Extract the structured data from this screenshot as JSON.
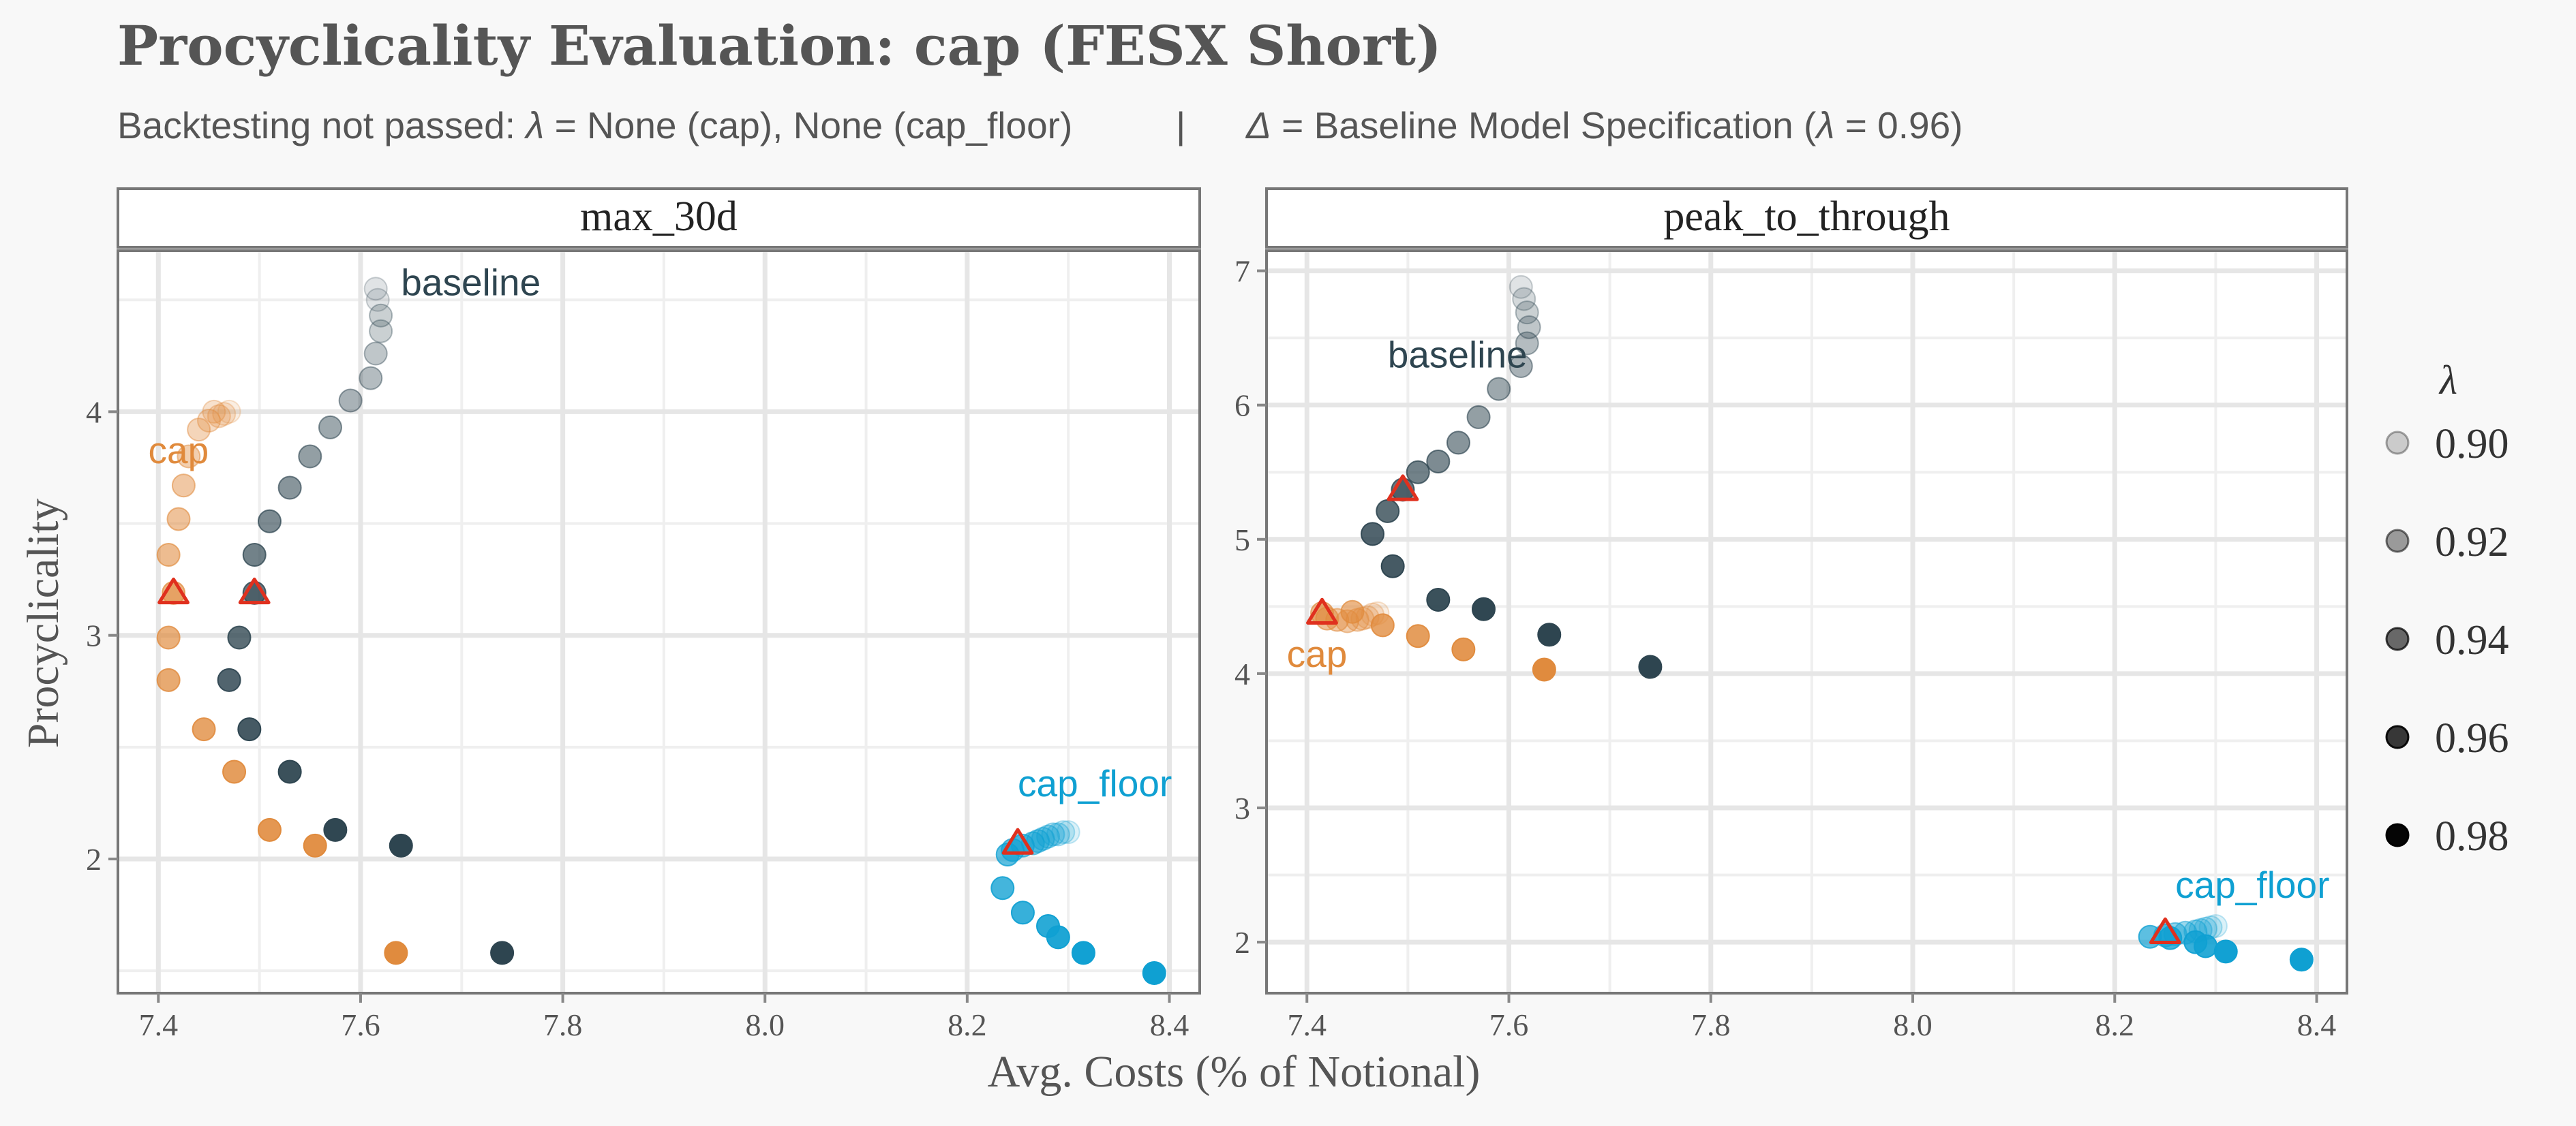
{
  "chart_data": {
    "type": "scatter",
    "title": "Procyclicality Evaluation: cap (FESX Short)",
    "subtitle": {
      "prefix": "Backtesting not passed: ",
      "lambda_sym": "λ",
      "mid": " = None (cap), None (cap_floor)",
      "separator": "|",
      "delta_sym": "Δ",
      "rest_a": " = Baseline Model Specification (",
      "rest_b": " = 0.96)"
    },
    "xlabel": "Avg. Costs (% of Notional)",
    "ylabel": "Procyclicality",
    "xlim": [
      7.36,
      8.43
    ],
    "x_ticks": [
      7.4,
      7.6,
      7.8,
      8.0,
      8.2,
      8.4
    ],
    "x_tick_labels": [
      "7.4",
      "7.6",
      "7.8",
      "8.0",
      "8.2",
      "8.4"
    ],
    "legend": {
      "title": "λ",
      "position": "right",
      "entries": [
        {
          "label": "0.90",
          "alpha": 0.18
        },
        {
          "label": "0.92",
          "alpha": 0.38
        },
        {
          "label": "0.94",
          "alpha": 0.58
        },
        {
          "label": "0.96",
          "alpha": 0.78
        },
        {
          "label": "0.98",
          "alpha": 0.98
        }
      ]
    },
    "series_colors": {
      "baseline": "#2e4550",
      "cap": "#e08a3c",
      "cap_floor": "#0fa0d2"
    },
    "marker_color": "#e0301e",
    "panels": [
      {
        "name": "max_30d",
        "ylim": [
          1.4,
          4.72
        ],
        "y_ticks": [
          2,
          3,
          4
        ],
        "y_tick_labels": [
          "2",
          "3",
          "4"
        ],
        "labels": [
          {
            "series": "baseline",
            "text": "baseline",
            "x": 7.64,
            "y": 4.52,
            "anchor": "start"
          },
          {
            "series": "cap",
            "text": "cap",
            "x": 7.39,
            "y": 3.77,
            "anchor": "start"
          },
          {
            "series": "cap_floor",
            "text": "cap_floor",
            "x": 8.25,
            "y": 2.28,
            "anchor": "start"
          }
        ],
        "markers": [
          {
            "series": "cap",
            "x": 7.415,
            "y": 3.19
          },
          {
            "series": "baseline",
            "x": 7.495,
            "y": 3.19
          },
          {
            "series": "cap_floor",
            "x": 8.25,
            "y": 2.07
          }
        ],
        "series": [
          {
            "name": "baseline",
            "points": [
              [
                7.615,
                4.55,
                0.9
              ],
              [
                7.617,
                4.5,
                0.9
              ],
              [
                7.62,
                4.43,
                0.91
              ],
              [
                7.62,
                4.36,
                0.91
              ],
              [
                7.615,
                4.26,
                0.915
              ],
              [
                7.61,
                4.15,
                0.92
              ],
              [
                7.59,
                4.05,
                0.925
              ],
              [
                7.57,
                3.93,
                0.93
              ],
              [
                7.55,
                3.8,
                0.935
              ],
              [
                7.53,
                3.66,
                0.94
              ],
              [
                7.51,
                3.51,
                0.945
              ],
              [
                7.495,
                3.36,
                0.95
              ],
              [
                7.495,
                3.19,
                0.955
              ],
              [
                7.48,
                2.99,
                0.96
              ],
              [
                7.47,
                2.8,
                0.965
              ],
              [
                7.49,
                2.58,
                0.97
              ],
              [
                7.53,
                2.39,
                0.975
              ],
              [
                7.575,
                2.13,
                0.98
              ],
              [
                7.64,
                2.06,
                0.985
              ],
              [
                7.74,
                1.58,
                0.99
              ]
            ]
          },
          {
            "name": "cap",
            "points": [
              [
                7.47,
                4.0,
                0.9
              ],
              [
                7.465,
                3.99,
                0.905
              ],
              [
                7.46,
                3.98,
                0.91
              ],
              [
                7.455,
                4.0,
                0.91
              ],
              [
                7.45,
                3.96,
                0.915
              ],
              [
                7.44,
                3.92,
                0.92
              ],
              [
                7.43,
                3.8,
                0.925
              ],
              [
                7.425,
                3.67,
                0.93
              ],
              [
                7.42,
                3.52,
                0.935
              ],
              [
                7.41,
                3.36,
                0.94
              ],
              [
                7.415,
                3.19,
                0.945
              ],
              [
                7.41,
                2.99,
                0.95
              ],
              [
                7.41,
                2.8,
                0.955
              ],
              [
                7.445,
                2.58,
                0.96
              ],
              [
                7.475,
                2.39,
                0.965
              ],
              [
                7.51,
                2.13,
                0.97
              ],
              [
                7.555,
                2.06,
                0.975
              ],
              [
                7.635,
                1.58,
                0.98
              ]
            ]
          },
          {
            "name": "cap_floor",
            "points": [
              [
                8.3,
                2.12,
                0.9
              ],
              [
                8.295,
                2.12,
                0.905
              ],
              [
                8.29,
                2.11,
                0.91
              ],
              [
                8.285,
                2.11,
                0.915
              ],
              [
                8.28,
                2.1,
                0.92
              ],
              [
                8.275,
                2.09,
                0.925
              ],
              [
                8.27,
                2.08,
                0.93
              ],
              [
                8.265,
                2.07,
                0.935
              ],
              [
                8.255,
                2.06,
                0.94
              ],
              [
                8.245,
                2.04,
                0.945
              ],
              [
                8.24,
                2.02,
                0.95
              ],
              [
                8.235,
                1.87,
                0.96
              ],
              [
                8.255,
                1.76,
                0.965
              ],
              [
                8.28,
                1.7,
                0.97
              ],
              [
                8.29,
                1.65,
                0.975
              ],
              [
                8.315,
                1.58,
                0.98
              ],
              [
                8.385,
                1.49,
                0.99
              ]
            ]
          }
        ]
      },
      {
        "name": "peak_to_through",
        "ylim": [
          1.62,
          7.15
        ],
        "y_ticks": [
          2,
          3,
          4,
          5,
          6,
          7
        ],
        "y_tick_labels": [
          "2",
          "3",
          "4",
          "5",
          "6",
          "7"
        ],
        "labels": [
          {
            "series": "baseline",
            "text": "baseline",
            "x": 7.48,
            "y": 6.28,
            "anchor": "start"
          },
          {
            "series": "cap",
            "text": "cap",
            "x": 7.38,
            "y": 4.05,
            "anchor": "start"
          },
          {
            "series": "cap_floor",
            "text": "cap_floor",
            "x": 8.26,
            "y": 2.33,
            "anchor": "start"
          }
        ],
        "markers": [
          {
            "series": "cap",
            "x": 7.415,
            "y": 4.45
          },
          {
            "series": "baseline",
            "x": 7.495,
            "y": 5.37
          },
          {
            "series": "cap_floor",
            "x": 8.25,
            "y": 2.07
          }
        ],
        "series": [
          {
            "name": "baseline",
            "points": [
              [
                7.612,
                6.88,
                0.9
              ],
              [
                7.615,
                6.79,
                0.905
              ],
              [
                7.618,
                6.69,
                0.91
              ],
              [
                7.62,
                6.58,
                0.915
              ],
              [
                7.618,
                6.46,
                0.92
              ],
              [
                7.612,
                6.29,
                0.925
              ],
              [
                7.59,
                6.12,
                0.93
              ],
              [
                7.57,
                5.91,
                0.935
              ],
              [
                7.55,
                5.72,
                0.94
              ],
              [
                7.53,
                5.58,
                0.945
              ],
              [
                7.51,
                5.5,
                0.95
              ],
              [
                7.495,
                5.37,
                0.955
              ],
              [
                7.48,
                5.21,
                0.96
              ],
              [
                7.465,
                5.04,
                0.965
              ],
              [
                7.485,
                4.8,
                0.97
              ],
              [
                7.53,
                4.55,
                0.975
              ],
              [
                7.575,
                4.48,
                0.98
              ],
              [
                7.64,
                4.29,
                0.985
              ],
              [
                7.74,
                4.05,
                0.99
              ]
            ]
          },
          {
            "name": "cap",
            "points": [
              [
                7.47,
                4.45,
                0.9
              ],
              [
                7.465,
                4.44,
                0.905
              ],
              [
                7.46,
                4.42,
                0.91
              ],
              [
                7.455,
                4.41,
                0.915
              ],
              [
                7.45,
                4.4,
                0.92
              ],
              [
                7.44,
                4.39,
                0.925
              ],
              [
                7.43,
                4.4,
                0.93
              ],
              [
                7.42,
                4.41,
                0.935
              ],
              [
                7.415,
                4.45,
                0.94
              ],
              [
                7.445,
                4.46,
                0.945
              ],
              [
                7.475,
                4.36,
                0.96
              ],
              [
                7.51,
                4.28,
                0.965
              ],
              [
                7.555,
                4.18,
                0.97
              ],
              [
                7.635,
                4.03,
                0.98
              ]
            ]
          },
          {
            "name": "cap_floor",
            "points": [
              [
                8.3,
                2.12,
                0.9
              ],
              [
                8.295,
                2.11,
                0.905
              ],
              [
                8.29,
                2.1,
                0.91
              ],
              [
                8.285,
                2.09,
                0.915
              ],
              [
                8.28,
                2.08,
                0.92
              ],
              [
                8.27,
                2.07,
                0.925
              ],
              [
                8.26,
                2.06,
                0.93
              ],
              [
                8.25,
                2.05,
                0.94
              ],
              [
                8.235,
                2.04,
                0.95
              ],
              [
                8.255,
                2.03,
                0.96
              ],
              [
                8.28,
                2.0,
                0.965
              ],
              [
                8.29,
                1.97,
                0.97
              ],
              [
                8.31,
                1.93,
                0.98
              ],
              [
                8.385,
                1.87,
                0.99
              ]
            ]
          }
        ]
      }
    ]
  }
}
